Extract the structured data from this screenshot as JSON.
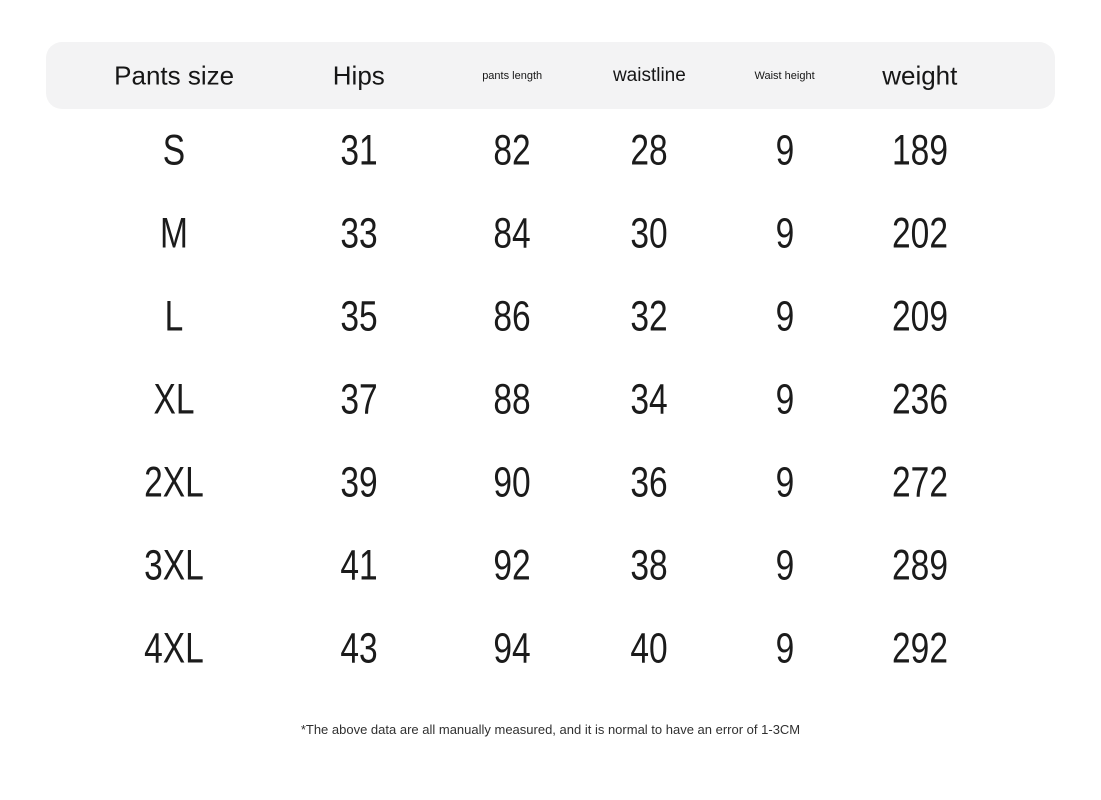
{
  "chart_data": {
    "type": "table",
    "columns": [
      "Pants size",
      "Hips",
      "pants length",
      "waistline",
      "Waist height",
      "weight"
    ],
    "rows": [
      [
        "S",
        31,
        82,
        28,
        9,
        189
      ],
      [
        "M",
        33,
        84,
        30,
        9,
        202
      ],
      [
        "L",
        35,
        86,
        32,
        9,
        209
      ],
      [
        "XL",
        37,
        88,
        34,
        9,
        236
      ],
      [
        "2XL",
        39,
        90,
        36,
        9,
        272
      ],
      [
        "3XL",
        41,
        92,
        38,
        9,
        289
      ],
      [
        "4XL",
        43,
        94,
        40,
        9,
        292
      ]
    ],
    "footnote": "*The above data are all manually measured, and it is normal to have an error of 1-3CM"
  },
  "colors": {
    "header_bg": "#f3f3f4",
    "text": "#1b1b1b"
  }
}
